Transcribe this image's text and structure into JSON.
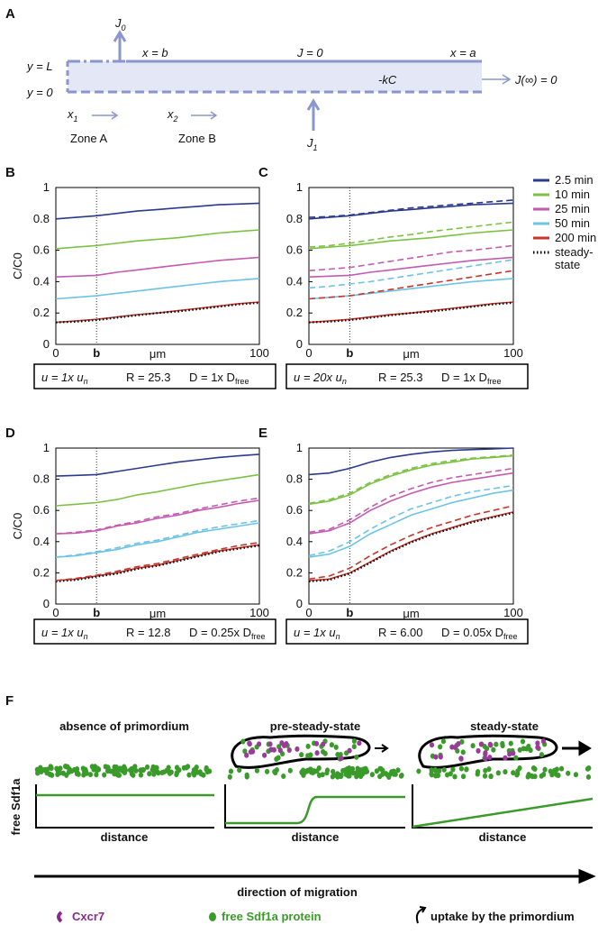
{
  "panel_a": {
    "label": "A",
    "j0": {
      "main": "J",
      "sub": "0"
    },
    "yL": "y = L",
    "y0": "y = 0",
    "xb": "x = b",
    "j_zero": "J = 0",
    "xa": "x = a",
    "kc": "-kC",
    "j_inf": "J(∞) = 0",
    "x1": {
      "main": "x",
      "sub": "1"
    },
    "x2": {
      "main": "x",
      "sub": "2"
    },
    "zone_a": "Zone A",
    "zone_b": "Zone B",
    "j1": {
      "main": "J",
      "sub": "1"
    }
  },
  "chart_data": [
    {
      "type": "line",
      "panel": "B",
      "xlabel": "μm",
      "ylabel": "C/C0",
      "x": [
        0,
        10,
        20,
        30,
        40,
        50,
        60,
        70,
        80,
        90,
        100
      ],
      "xlim": [
        0,
        100
      ],
      "xticks": [
        0,
        {
          "value": 20,
          "label": "b"
        },
        100
      ],
      "ylim": [
        0,
        1
      ],
      "yticks": [
        0,
        0.2,
        0.4,
        0.6,
        0.8,
        1
      ],
      "grid": false,
      "caption": {
        "u": "u = 1x u",
        "u_sub": "n",
        "r": "R = 25.3",
        "d": "D = 1x D",
        "d_sub": "free"
      },
      "series": [
        {
          "color": "#2b3a8c",
          "style": "solid",
          "values": [
            0.8,
            0.81,
            0.82,
            0.835,
            0.85,
            0.86,
            0.87,
            0.88,
            0.89,
            0.895,
            0.9
          ]
        },
        {
          "color": "#7cc242",
          "style": "solid",
          "values": [
            0.61,
            0.62,
            0.63,
            0.645,
            0.66,
            0.67,
            0.68,
            0.695,
            0.71,
            0.72,
            0.73
          ]
        },
        {
          "color": "#c45bb0",
          "style": "solid",
          "values": [
            0.43,
            0.435,
            0.44,
            0.46,
            0.475,
            0.49,
            0.505,
            0.52,
            0.535,
            0.545,
            0.555
          ]
        },
        {
          "color": "#6cc3e6",
          "style": "solid",
          "values": [
            0.29,
            0.3,
            0.31,
            0.325,
            0.34,
            0.355,
            0.37,
            0.385,
            0.4,
            0.41,
            0.42
          ]
        },
        {
          "color": "#c8352b",
          "style": "solid",
          "values": [
            0.14,
            0.15,
            0.16,
            0.175,
            0.19,
            0.2,
            0.215,
            0.23,
            0.245,
            0.26,
            0.27
          ]
        },
        {
          "color": "#000000",
          "style": "dotted",
          "values": [
            0.14,
            0.145,
            0.155,
            0.17,
            0.185,
            0.2,
            0.21,
            0.225,
            0.24,
            0.255,
            0.265
          ]
        }
      ]
    },
    {
      "type": "line",
      "panel": "C",
      "xlabel": "μm",
      "x": [
        0,
        10,
        20,
        30,
        40,
        50,
        60,
        70,
        80,
        90,
        100
      ],
      "xlim": [
        0,
        100
      ],
      "xticks": [
        0,
        {
          "value": 20,
          "label": "b"
        },
        100
      ],
      "ylim": [
        0,
        1
      ],
      "yticks": [
        0,
        0.2,
        0.4,
        0.6,
        0.8,
        1
      ],
      "grid": false,
      "legend": "right",
      "caption": {
        "u": "u = 20x u",
        "u_sub": "n",
        "r": "R = 25.3",
        "d": "D = 1x D",
        "d_sub": "free"
      },
      "series": [
        {
          "name": "2.5 min",
          "color": "#2b3a8c",
          "style": "solid",
          "values": [
            0.8,
            0.81,
            0.82,
            0.835,
            0.85,
            0.86,
            0.87,
            0.88,
            0.89,
            0.895,
            0.9
          ]
        },
        {
          "name": "10 min",
          "color": "#7cc242",
          "style": "solid",
          "values": [
            0.61,
            0.62,
            0.63,
            0.645,
            0.66,
            0.67,
            0.68,
            0.695,
            0.71,
            0.72,
            0.73
          ]
        },
        {
          "name": "25 min",
          "color": "#c45bb0",
          "style": "solid",
          "values": [
            0.43,
            0.435,
            0.44,
            0.46,
            0.475,
            0.49,
            0.505,
            0.52,
            0.535,
            0.545,
            0.555
          ]
        },
        {
          "name": "50 min",
          "color": "#6cc3e6",
          "style": "solid",
          "values": [
            0.29,
            0.3,
            0.31,
            0.325,
            0.34,
            0.355,
            0.37,
            0.385,
            0.4,
            0.41,
            0.42
          ]
        },
        {
          "name": "200 min",
          "color": "#c8352b",
          "style": "solid",
          "values": [
            0.14,
            0.15,
            0.16,
            0.175,
            0.19,
            0.2,
            0.215,
            0.23,
            0.245,
            0.26,
            0.27
          ]
        },
        {
          "name": "steady-state",
          "color": "#000000",
          "style": "dotted",
          "values": [
            0.14,
            0.145,
            0.155,
            0.17,
            0.185,
            0.2,
            0.21,
            0.225,
            0.24,
            0.255,
            0.265
          ]
        },
        {
          "color": "#2b3a8c",
          "style": "dashed",
          "values": [
            0.81,
            0.815,
            0.825,
            0.84,
            0.855,
            0.87,
            0.88,
            0.89,
            0.9,
            0.91,
            0.92
          ]
        },
        {
          "color": "#7cc242",
          "style": "dashed",
          "values": [
            0.62,
            0.63,
            0.645,
            0.665,
            0.685,
            0.7,
            0.72,
            0.735,
            0.75,
            0.765,
            0.78
          ]
        },
        {
          "color": "#c45bb0",
          "style": "dashed",
          "values": [
            0.47,
            0.48,
            0.49,
            0.51,
            0.53,
            0.55,
            0.57,
            0.59,
            0.6,
            0.615,
            0.63
          ]
        },
        {
          "color": "#6cc3e6",
          "style": "dashed",
          "values": [
            0.36,
            0.37,
            0.385,
            0.4,
            0.42,
            0.44,
            0.46,
            0.48,
            0.5,
            0.52,
            0.54
          ]
        },
        {
          "color": "#c8352b",
          "style": "dashed",
          "values": [
            0.29,
            0.3,
            0.31,
            0.33,
            0.35,
            0.37,
            0.39,
            0.41,
            0.43,
            0.45,
            0.47
          ]
        }
      ]
    },
    {
      "type": "line",
      "panel": "D",
      "xlabel": "μm",
      "ylabel": "C/C0",
      "x": [
        0,
        10,
        20,
        30,
        40,
        50,
        60,
        70,
        80,
        90,
        100
      ],
      "xlim": [
        0,
        100
      ],
      "xticks": [
        0,
        {
          "value": 20,
          "label": "b"
        },
        100
      ],
      "ylim": [
        0,
        1
      ],
      "yticks": [
        0,
        0.2,
        0.4,
        0.6,
        0.8,
        1
      ],
      "grid": false,
      "caption": {
        "u": "u = 1x u",
        "u_sub": "n",
        "r": "R = 12.8",
        "d": "D = 0.25x D",
        "d_sub": "free"
      },
      "series": [
        {
          "color": "#2b3a8c",
          "style": "solid",
          "values": [
            0.82,
            0.825,
            0.83,
            0.85,
            0.87,
            0.89,
            0.91,
            0.925,
            0.94,
            0.95,
            0.96
          ]
        },
        {
          "color": "#7cc242",
          "style": "solid",
          "values": [
            0.63,
            0.64,
            0.65,
            0.67,
            0.7,
            0.72,
            0.745,
            0.77,
            0.79,
            0.81,
            0.83
          ]
        },
        {
          "color": "#c45bb0",
          "style": "solid",
          "values": [
            0.45,
            0.455,
            0.47,
            0.5,
            0.52,
            0.55,
            0.57,
            0.6,
            0.62,
            0.645,
            0.665
          ]
        },
        {
          "color": "#6cc3e6",
          "style": "solid",
          "values": [
            0.3,
            0.31,
            0.33,
            0.35,
            0.38,
            0.4,
            0.43,
            0.46,
            0.48,
            0.5,
            0.52
          ]
        },
        {
          "color": "#c8352b",
          "style": "solid",
          "values": [
            0.15,
            0.16,
            0.18,
            0.2,
            0.23,
            0.25,
            0.28,
            0.31,
            0.34,
            0.36,
            0.38
          ]
        },
        {
          "color": "#000000",
          "style": "dotted",
          "values": [
            0.145,
            0.155,
            0.175,
            0.195,
            0.225,
            0.245,
            0.275,
            0.305,
            0.335,
            0.355,
            0.375
          ]
        },
        {
          "color": "#c45bb0",
          "style": "dashed",
          "values": [
            0.45,
            0.46,
            0.475,
            0.505,
            0.53,
            0.56,
            0.58,
            0.61,
            0.635,
            0.66,
            0.68
          ]
        },
        {
          "color": "#6cc3e6",
          "style": "dashed",
          "values": [
            0.3,
            0.315,
            0.335,
            0.36,
            0.39,
            0.41,
            0.44,
            0.47,
            0.495,
            0.515,
            0.535
          ]
        },
        {
          "color": "#c8352b",
          "style": "dashed",
          "values": [
            0.15,
            0.165,
            0.185,
            0.21,
            0.24,
            0.26,
            0.29,
            0.32,
            0.35,
            0.375,
            0.395
          ]
        }
      ]
    },
    {
      "type": "line",
      "panel": "E",
      "xlabel": "μm",
      "x": [
        0,
        10,
        20,
        30,
        40,
        50,
        60,
        70,
        80,
        90,
        100
      ],
      "xlim": [
        0,
        100
      ],
      "xticks": [
        0,
        {
          "value": 20,
          "label": "b"
        },
        100
      ],
      "ylim": [
        0,
        1
      ],
      "yticks": [
        0,
        0.2,
        0.4,
        0.6,
        0.8,
        1
      ],
      "grid": false,
      "caption": {
        "u": "u = 1x u",
        "u_sub": "n",
        "r": "R = 6.00",
        "d": "D = 0.05x D",
        "d_sub": "free"
      },
      "series": [
        {
          "color": "#2b3a8c",
          "style": "solid",
          "values": [
            0.83,
            0.84,
            0.87,
            0.91,
            0.94,
            0.96,
            0.975,
            0.985,
            0.99,
            0.995,
            1.0
          ]
        },
        {
          "color": "#7cc242",
          "style": "solid",
          "values": [
            0.64,
            0.66,
            0.7,
            0.77,
            0.82,
            0.86,
            0.89,
            0.91,
            0.93,
            0.94,
            0.95
          ]
        },
        {
          "color": "#c45bb0",
          "style": "solid",
          "values": [
            0.45,
            0.47,
            0.52,
            0.6,
            0.66,
            0.71,
            0.75,
            0.78,
            0.8,
            0.82,
            0.84
          ]
        },
        {
          "color": "#6cc3e6",
          "style": "solid",
          "values": [
            0.3,
            0.32,
            0.37,
            0.45,
            0.51,
            0.57,
            0.61,
            0.65,
            0.68,
            0.71,
            0.73
          ]
        },
        {
          "color": "#c8352b",
          "style": "solid",
          "values": [
            0.15,
            0.16,
            0.2,
            0.27,
            0.34,
            0.4,
            0.45,
            0.49,
            0.53,
            0.56,
            0.59
          ]
        },
        {
          "color": "#000000",
          "style": "dotted",
          "values": [
            0.145,
            0.155,
            0.195,
            0.265,
            0.335,
            0.395,
            0.445,
            0.485,
            0.525,
            0.555,
            0.585
          ]
        },
        {
          "color": "#7cc242",
          "style": "dashed",
          "values": [
            0.645,
            0.67,
            0.71,
            0.78,
            0.83,
            0.87,
            0.9,
            0.92,
            0.935,
            0.945,
            0.955
          ]
        },
        {
          "color": "#c45bb0",
          "style": "dashed",
          "values": [
            0.46,
            0.48,
            0.54,
            0.62,
            0.69,
            0.74,
            0.78,
            0.81,
            0.83,
            0.85,
            0.87
          ]
        },
        {
          "color": "#6cc3e6",
          "style": "dashed",
          "values": [
            0.31,
            0.34,
            0.4,
            0.48,
            0.55,
            0.61,
            0.65,
            0.69,
            0.72,
            0.74,
            0.76
          ]
        },
        {
          "color": "#c8352b",
          "style": "dashed",
          "values": [
            0.16,
            0.18,
            0.23,
            0.31,
            0.38,
            0.44,
            0.49,
            0.53,
            0.57,
            0.6,
            0.63
          ]
        }
      ]
    }
  ],
  "panel_f": {
    "label": "F",
    "title_1": "absence of primordium",
    "title_2": "pre-steady-state",
    "title_3": "steady-state",
    "ylabel": "free Sdf1a",
    "distance_1": "distance",
    "distance_2": "distance",
    "distance_3": "distance",
    "arrow_label": "direction of migration",
    "legend_cxcr7": "Cxcr7",
    "legend_sdf": "free Sdf1a protein",
    "legend_uptake": "uptake by the primordium"
  }
}
